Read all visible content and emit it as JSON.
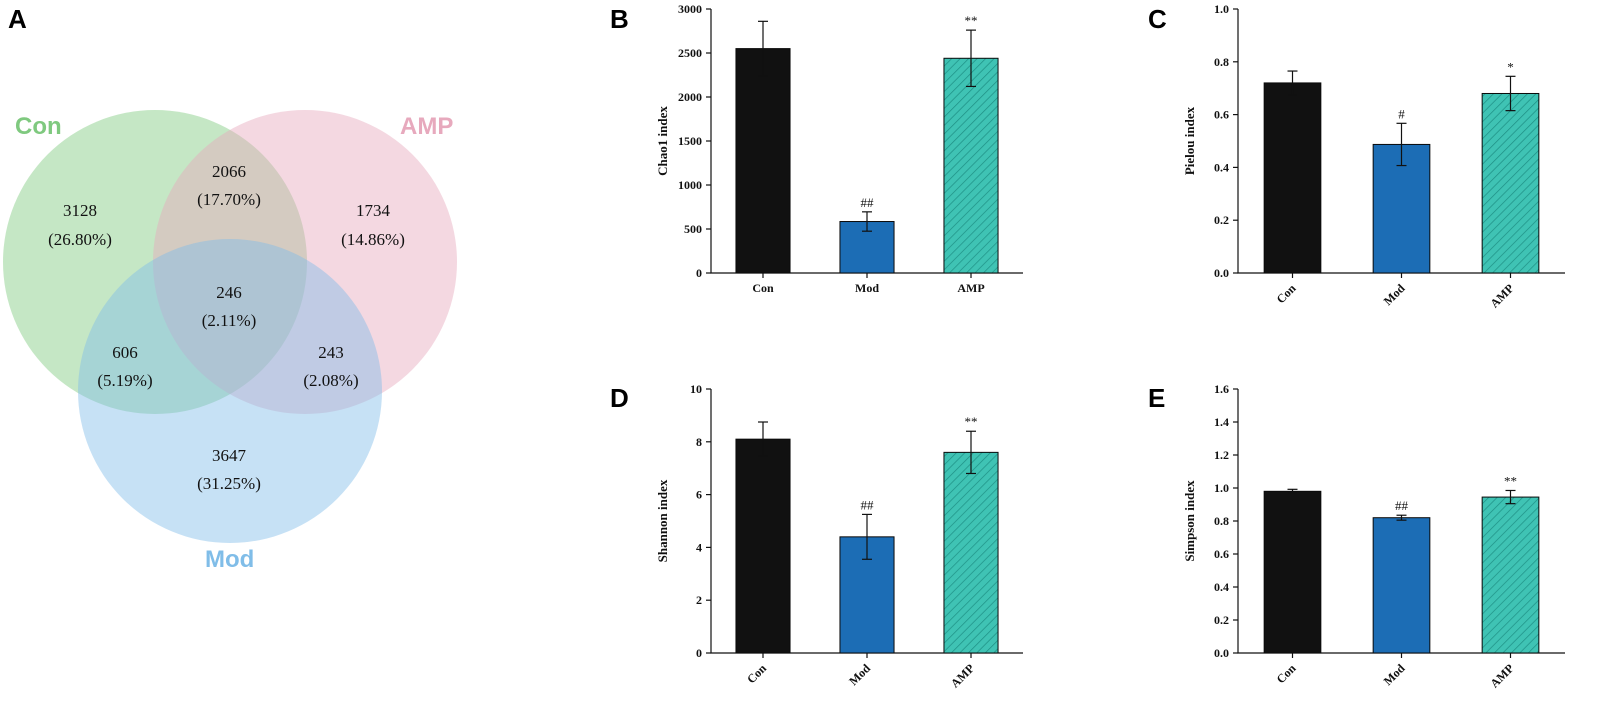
{
  "panel_letters": {
    "a": "A",
    "b": "B",
    "c": "C",
    "d": "D",
    "e": "E"
  },
  "venn": {
    "sets": [
      {
        "key": "con",
        "label": "Con",
        "color": "#7fc97f"
      },
      {
        "key": "amp",
        "label": "AMP",
        "color": "#e7a9bd"
      },
      {
        "key": "mod",
        "label": "Mod",
        "color": "#80bde8"
      }
    ],
    "regions": {
      "con_only": {
        "count": "3128",
        "pct": "(26.80%)"
      },
      "con_amp": {
        "count": "2066",
        "pct": "(17.70%)"
      },
      "amp_only": {
        "count": "1734",
        "pct": "(14.86%)"
      },
      "all": {
        "count": "246",
        "pct": "(2.11%)"
      },
      "con_mod": {
        "count": "606",
        "pct": "(5.19%)"
      },
      "amp_mod": {
        "count": "243",
        "pct": "(2.08%)"
      },
      "mod_only": {
        "count": "3647",
        "pct": "(31.25%)"
      }
    }
  },
  "colors": {
    "con": "#111111",
    "mod": "#1c6db5",
    "amp": "#3fc3b4"
  },
  "chart_data": [
    {
      "id": "B",
      "type": "bar",
      "ylabel": "Chao1 index",
      "xtick_rotate": false,
      "categories": [
        "Con",
        "Mod",
        "AMP"
      ],
      "values": [
        2550,
        585,
        2440
      ],
      "errors": [
        310,
        110,
        320
      ],
      "sig": [
        "",
        "##",
        "**"
      ],
      "ylim": [
        0,
        3000
      ],
      "yticks": [
        "0",
        "500",
        "1000",
        "1500",
        "2000",
        "2500",
        "3000"
      ]
    },
    {
      "id": "C",
      "type": "bar",
      "ylabel": "Pielou index",
      "xtick_rotate": true,
      "categories": [
        "Con",
        "Mod",
        "AMP"
      ],
      "values": [
        0.72,
        0.487,
        0.68
      ],
      "errors": [
        0.045,
        0.08,
        0.065
      ],
      "sig": [
        "",
        "#",
        "*"
      ],
      "ylim": [
        0,
        1.0
      ],
      "yticks": [
        "0.0",
        "0.2",
        "0.4",
        "0.6",
        "0.8",
        "1.0"
      ]
    },
    {
      "id": "D",
      "type": "bar",
      "ylabel": "Shannon index",
      "xtick_rotate": true,
      "categories": [
        "Con",
        "Mod",
        "AMP"
      ],
      "values": [
        8.1,
        4.4,
        7.6
      ],
      "errors": [
        0.65,
        0.85,
        0.8
      ],
      "sig": [
        "",
        "##",
        "**"
      ],
      "ylim": [
        0,
        10
      ],
      "yticks": [
        "0",
        "2",
        "4",
        "6",
        "8",
        "10"
      ]
    },
    {
      "id": "E",
      "type": "bar",
      "ylabel": "Simpson index",
      "xtick_rotate": true,
      "categories": [
        "Con",
        "Mod",
        "AMP"
      ],
      "values": [
        0.98,
        0.82,
        0.945
      ],
      "errors": [
        0.012,
        0.015,
        0.04
      ],
      "sig": [
        "",
        "##",
        "**"
      ],
      "ylim": [
        0,
        1.6
      ],
      "yticks": [
        "0.0",
        "0.2",
        "0.4",
        "0.6",
        "0.8",
        "1.0",
        "1.2",
        "1.4",
        "1.6"
      ]
    }
  ]
}
